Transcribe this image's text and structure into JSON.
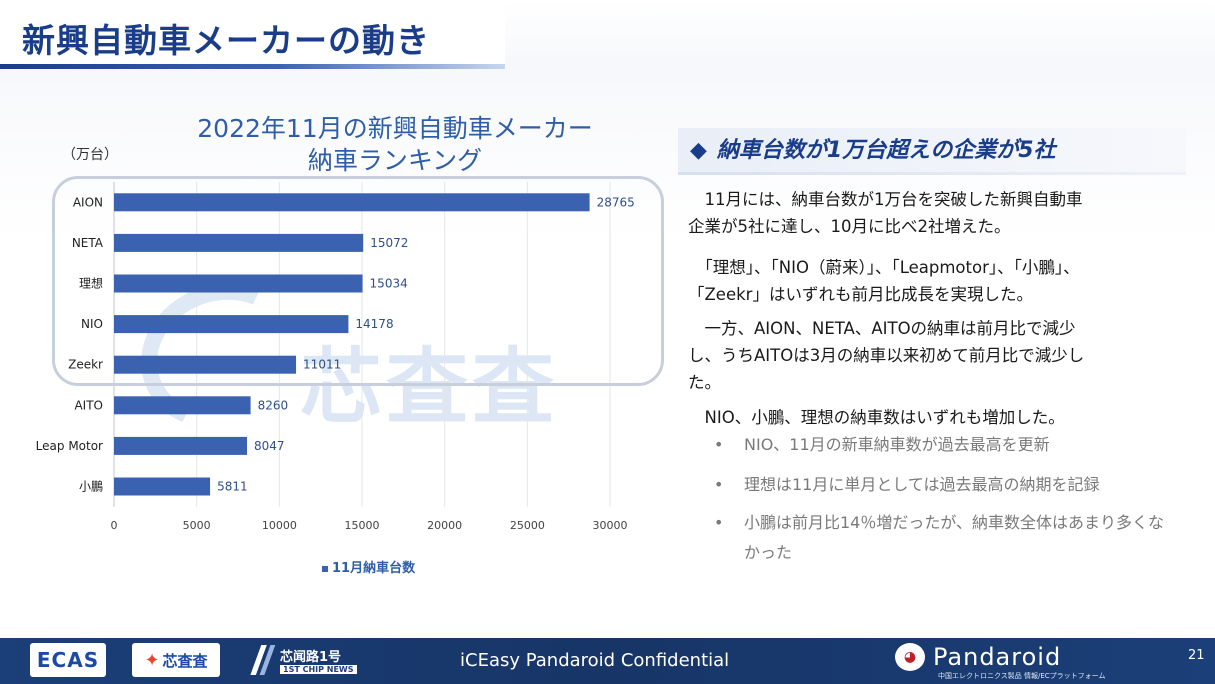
{
  "slide": {
    "title": "新興自動車メーカーの動き",
    "page_number": "21"
  },
  "chart_data": {
    "type": "bar",
    "orientation": "horizontal",
    "title": "2022年11月の新興自動車メーカー納車ランキング",
    "title_line1": "2022年11月の新興自動車メーカー",
    "title_line2": "納車ランキング",
    "unit_label": "（万台）",
    "categories": [
      "AION",
      "NETA",
      "理想",
      "NIO",
      "Zeekr",
      "AITO",
      "Leap Motor",
      "小鵬"
    ],
    "series": [
      {
        "name": "11月納車台数",
        "values": [
          28765,
          15072,
          15034,
          14178,
          11011,
          8260,
          8047,
          5811
        ],
        "color": "#3a62b0"
      }
    ],
    "xlim": [
      0,
      30000
    ],
    "x_ticks": [
      0,
      5000,
      10000,
      15000,
      20000,
      25000,
      30000
    ],
    "grid": "vertical",
    "legend_position": "bottom",
    "legend_label": "11月納車台数"
  },
  "watermark": {
    "text": "芯査査"
  },
  "right_panel": {
    "heading": "納車台数が1万台超えの企業が5社",
    "heading_marker": "◆",
    "paragraphs": [
      {
        "lines": [
          "　11月には、納車台数が1万台を突破した新興自動車",
          "企業が5社に達し、10月に比べ2社増えた。"
        ]
      },
      {
        "lines": [
          "　「理想」、「NIO（蔚来）」、「Leapmotor」、「小鵬」、",
          "「Zeekr」はいずれも前月比成長を実現した。"
        ]
      },
      {
        "lines": [
          "　一方、AION、NETA、AITOの納車は前月比で減少",
          "し、うちAITOは3月の納車以来初めて前月比で減少し",
          "た。"
        ]
      },
      {
        "lines": [
          "　NIO、小鵬、理想の納車数はいずれも増加した。"
        ]
      }
    ],
    "bullets": [
      "NIO、11月の新車納車数が過去最高を更新",
      "理想は11月に単月としては過去最高の納期を記録",
      "小鵬は前月比14％増だったが、納車数全体はあまり多くなかった"
    ],
    "bullet_marker": "•"
  },
  "footer": {
    "logo_ecas": "ECAS",
    "logo_xcc": "芯査査",
    "logo_news_cn": "芯闻路1号",
    "logo_news_en": "1ST CHIP NEWS",
    "confidential": "iCEasy  Pandaroid Confidential",
    "brand_name": "Pandaroid",
    "brand_sub": "中国エレクトロニクス製品 情報/ECプラットフォーム"
  },
  "colors": {
    "title": "#1a3d8a",
    "bar": "#3a62b0",
    "footer": "#173567"
  }
}
